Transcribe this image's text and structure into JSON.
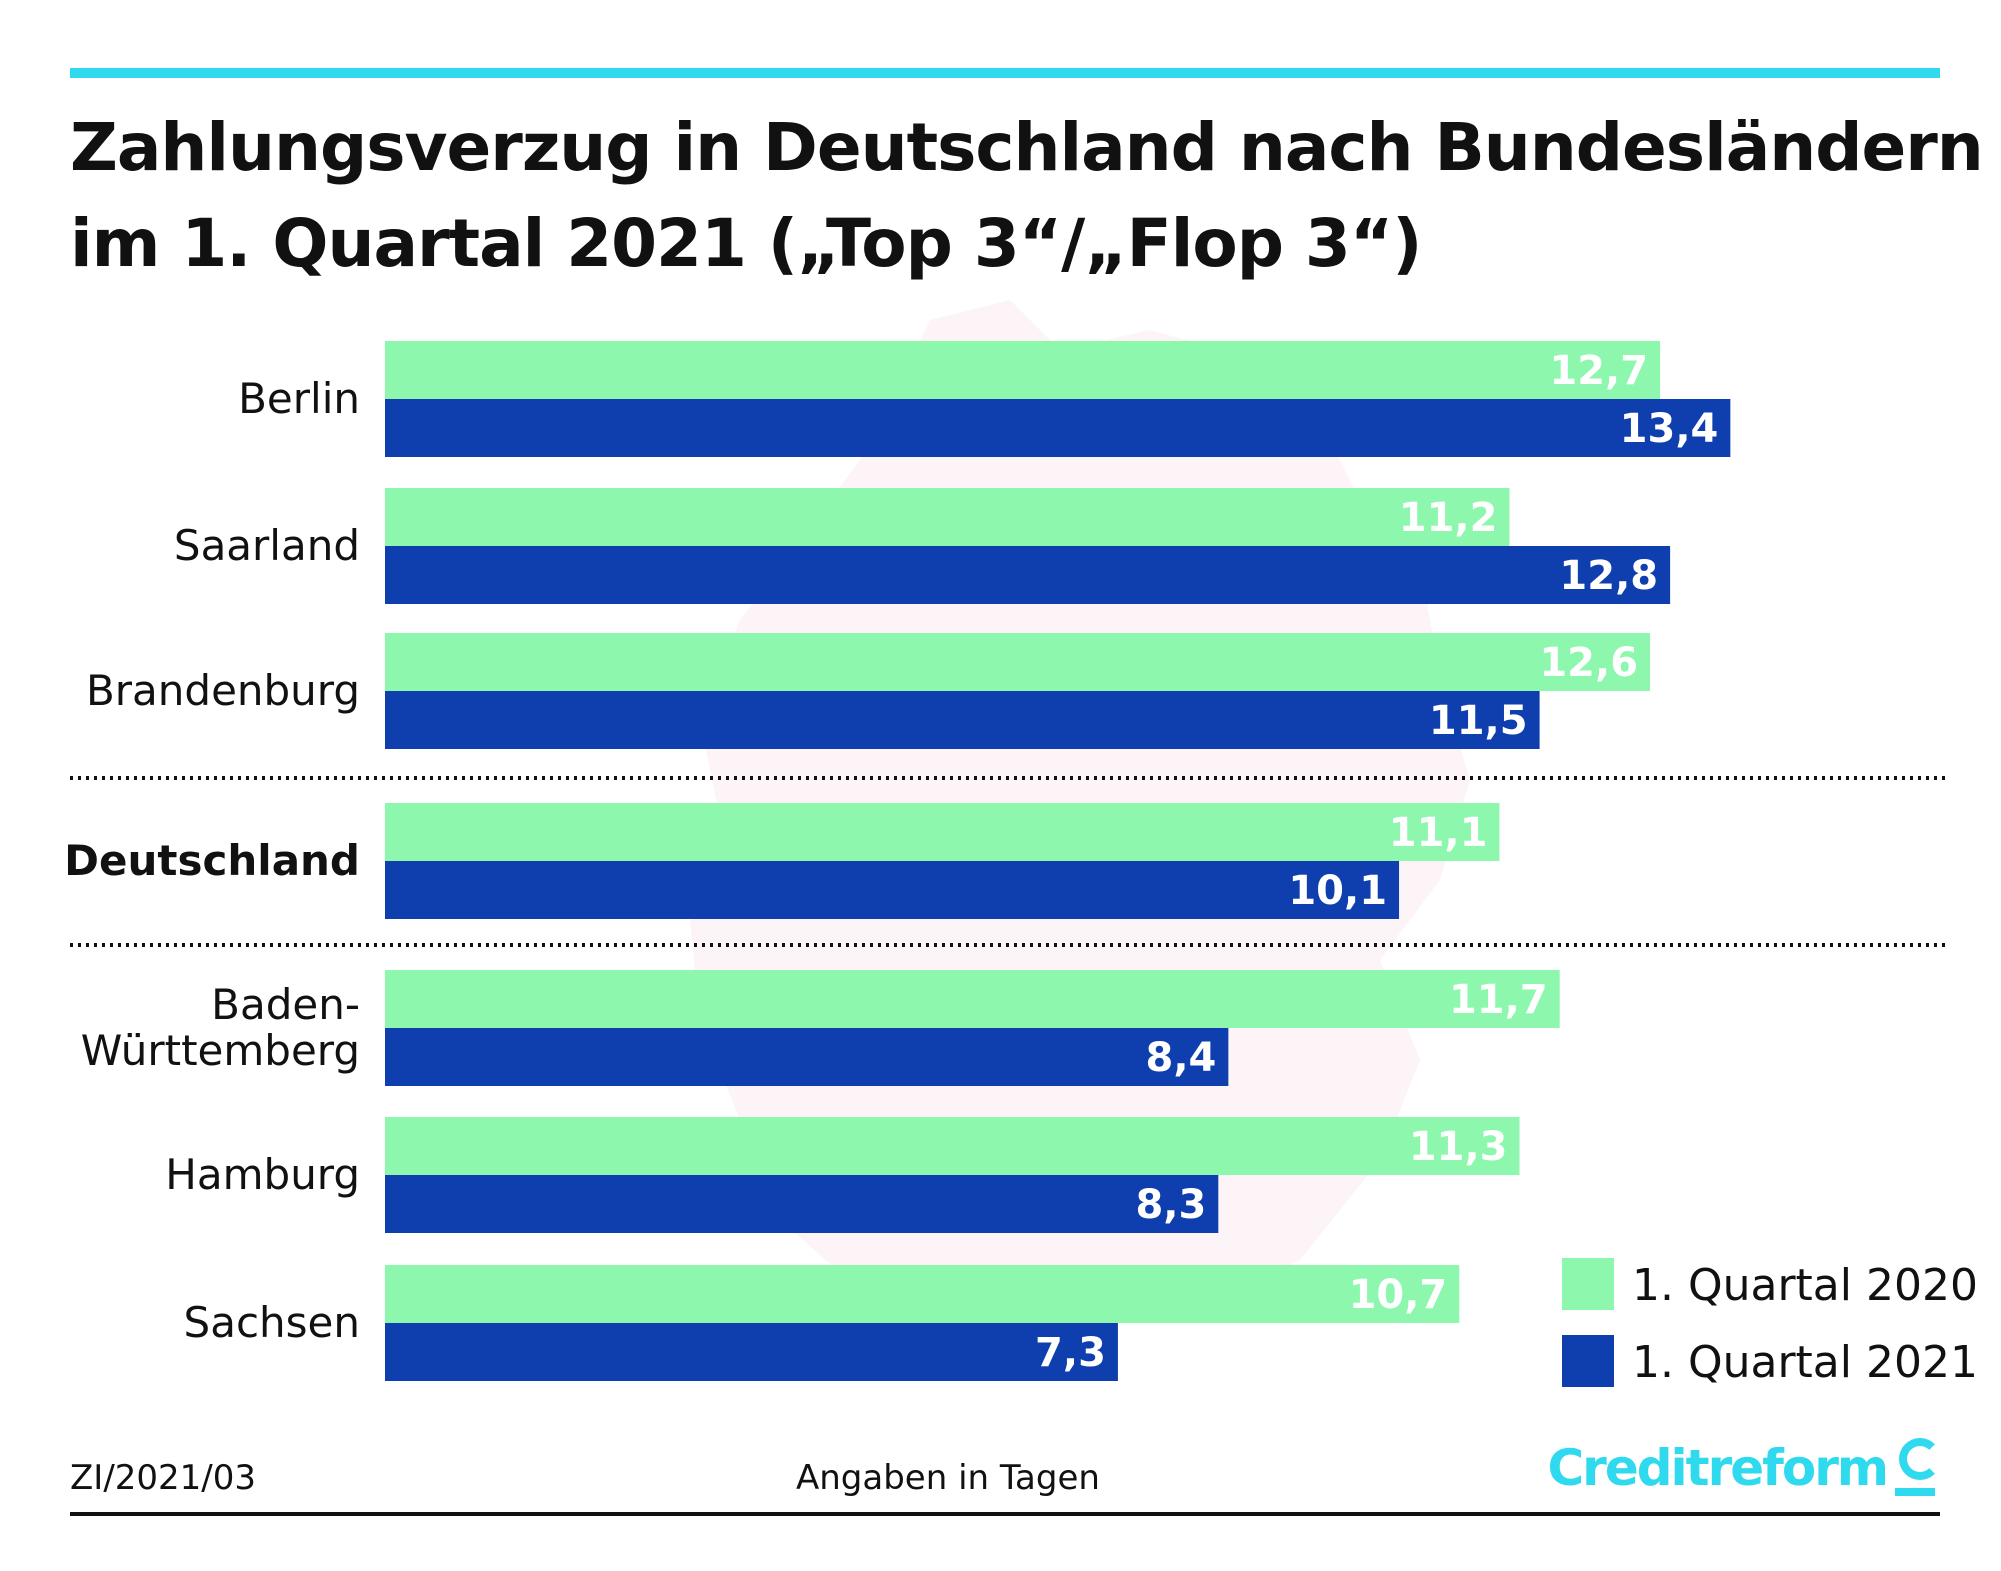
{
  "header": {
    "title_line1": "Zahlungsverzug in Deutschland nach Bundesländern",
    "title_line2": "im 1. Quartal 2021 („Top 3“/„Flop 3“)"
  },
  "chart_data": {
    "type": "bar",
    "orientation": "horizontal",
    "title": "Zahlungsverzug in Deutschland nach Bundesländern im 1. Quartal 2021 („Top 3“/„Flop 3“)",
    "unit_note": "Angaben in Tagen",
    "xlim": [
      0,
      13.4
    ],
    "grid": false,
    "legend_position": "bottom-right",
    "categories": [
      "Berlin",
      "Saarland",
      "Brandenburg",
      "Deutschland",
      "Baden-Württemberg",
      "Hamburg",
      "Sachsen"
    ],
    "category_display": [
      [
        "Berlin"
      ],
      [
        "Saarland"
      ],
      [
        "Brandenburg"
      ],
      [
        "Deutschland"
      ],
      [
        "Baden-",
        "Württemberg"
      ],
      [
        "Hamburg"
      ],
      [
        "Sachsen"
      ]
    ],
    "highlight_category": "Deutschland",
    "group_separators_after": [
      "Brandenburg",
      "Deutschland"
    ],
    "series": [
      {
        "name": "1. Quartal 2020",
        "color": "#8cf7ad",
        "values": [
          12.7,
          11.2,
          12.6,
          11.1,
          11.7,
          11.3,
          10.7
        ],
        "labels": [
          "12,7",
          "11,2",
          "12,6",
          "11,1",
          "11,7",
          "11,3",
          "10,7"
        ]
      },
      {
        "name": "1. Quartal 2021",
        "color": "#0f3fae",
        "values": [
          13.4,
          12.8,
          11.5,
          10.1,
          8.4,
          8.3,
          7.3
        ],
        "labels": [
          "13,4",
          "12,8",
          "11,5",
          "10,1",
          "8,4",
          "8,3",
          "7,3"
        ]
      }
    ]
  },
  "footer": {
    "code": "ZI/2021/03",
    "note": "Angaben in Tagen",
    "brand": "Creditreform"
  },
  "colors": {
    "accent": "#2fd9ee",
    "series_2020": "#8cf7ad",
    "series_2021": "#0f3fae"
  }
}
